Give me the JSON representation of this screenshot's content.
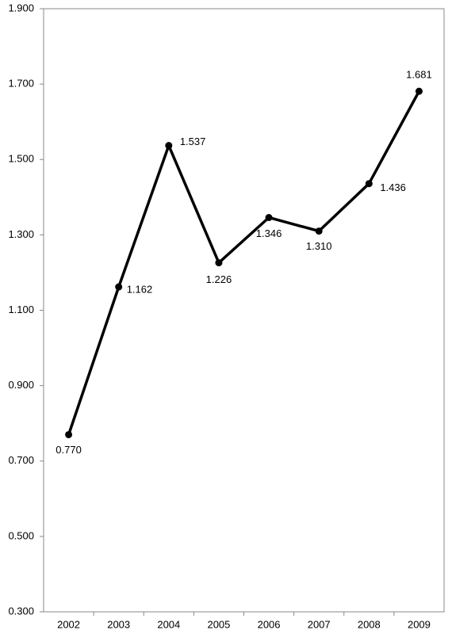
{
  "chart_data": {
    "type": "line",
    "categories": [
      "2002",
      "2003",
      "2004",
      "2005",
      "2006",
      "2007",
      "2008",
      "2009"
    ],
    "values": [
      0.77,
      1.162,
      1.537,
      1.226,
      1.346,
      1.31,
      1.436,
      1.681
    ],
    "value_labels": [
      "0.770",
      "1.162",
      "1.537",
      "1.226",
      "1.346",
      "1.310",
      "1.436",
      "1.681"
    ],
    "color": "#000000",
    "ylim": [
      0.3,
      1.9
    ],
    "yticks": [
      {
        "value": 0.3,
        "label": "0.300"
      },
      {
        "value": 0.5,
        "label": "0.500"
      },
      {
        "value": 0.7,
        "label": "0.700"
      },
      {
        "value": 0.9,
        "label": "0.900"
      },
      {
        "value": 1.1,
        "label": "1.100"
      },
      {
        "value": 1.3,
        "label": "1.300"
      },
      {
        "value": 1.5,
        "label": "1.500"
      },
      {
        "value": 1.7,
        "label": "1.700"
      },
      {
        "value": 1.9,
        "label": "1.900"
      }
    ],
    "grid": false
  }
}
